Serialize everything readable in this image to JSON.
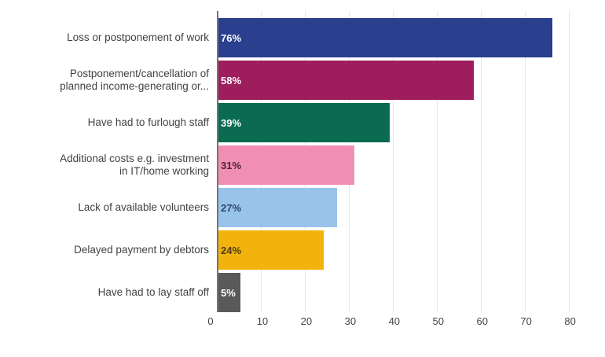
{
  "chart_data": {
    "type": "bar",
    "orientation": "horizontal",
    "title": "",
    "xlabel": "",
    "ylabel": "",
    "categories": [
      "Loss or postponement of work",
      "Postponement/cancellation of\nplanned income-generating or...",
      "Have had to furlough staff",
      "Additional costs e.g. investment\nin IT/home working",
      "Lack of available volunteers",
      "Delayed payment by debtors",
      "Have had to lay staff off"
    ],
    "values": [
      76,
      58,
      39,
      31,
      27,
      24,
      5
    ],
    "value_labels": [
      "76%",
      "58%",
      "39%",
      "31%",
      "27%",
      "24%",
      "5%"
    ],
    "bar_colors": [
      "#2a3f8d",
      "#9e1d5c",
      "#0a6b51",
      "#f08fb1",
      "#98c3ea",
      "#f2b30c",
      "#595959"
    ],
    "value_label_colors": [
      "#ffffff",
      "#ffffff",
      "#ffffff",
      "#4f2337",
      "#2c4770",
      "#4f3c10",
      "#ffffff"
    ],
    "x_ticks": [
      0,
      10,
      20,
      30,
      40,
      50,
      60,
      70,
      80
    ],
    "xlim": [
      0,
      84
    ],
    "grid": true,
    "legend": false,
    "colors": {
      "gridline": "#e6e6e6",
      "axis_line": "#757575",
      "tick_label": "#444444",
      "category_label": "#424242",
      "background": "#ffffff"
    }
  }
}
